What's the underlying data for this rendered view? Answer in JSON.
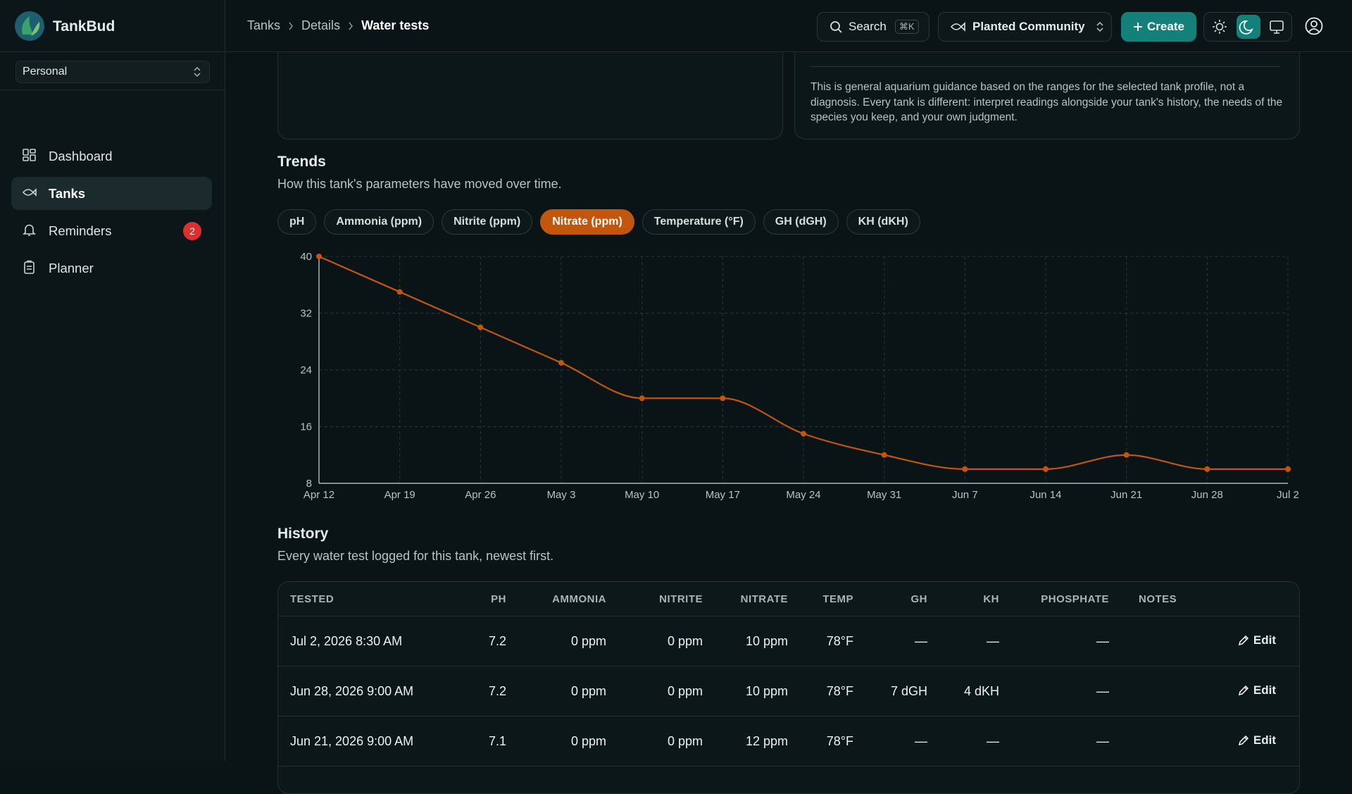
{
  "sidebar": {
    "brand": "TankBud",
    "workspace": "Personal",
    "nav": [
      {
        "label": "Dashboard"
      },
      {
        "label": "Tanks"
      },
      {
        "label": "Reminders",
        "badge": "2"
      },
      {
        "label": "Planner"
      }
    ],
    "active_nav": 1
  },
  "header": {
    "breadcrumb": [
      "Tanks",
      "Details",
      "Water tests"
    ],
    "search": "Search",
    "shortcut": "⌘K",
    "tank": "Planted Community",
    "create": "Create"
  },
  "guidance": "This is general aquarium guidance based on the ranges for the selected tank profile, not a diagnosis. Every tank is different: interpret readings alongside your tank's history, the needs of the species you keep, and your own judgment.",
  "trends": {
    "title": "Trends",
    "subtitle": "How this tank's parameters have moved over time.",
    "tabs": [
      "pH",
      "Ammonia (ppm)",
      "Nitrite (ppm)",
      "Nitrate (ppm)",
      "Temperature (°F)",
      "GH (dGH)",
      "KH (dKH)"
    ],
    "active_tab": 3
  },
  "chart_data": {
    "type": "line",
    "categories": [
      "Apr 12",
      "Apr 19",
      "Apr 26",
      "May 3",
      "May 10",
      "May 17",
      "May 24",
      "May 31",
      "Jun 7",
      "Jun 14",
      "Jun 21",
      "Jun 28",
      "Jul 2"
    ],
    "values": [
      40,
      35,
      30,
      25,
      20,
      20,
      15,
      12,
      10,
      10,
      12,
      10,
      10
    ],
    "color": "#c2560c",
    "ylim": [
      8,
      40
    ],
    "yticks": [
      8,
      16,
      24,
      32,
      40
    ],
    "grid": true
  },
  "history": {
    "title": "History",
    "subtitle": "Every water test logged for this tank, newest first.",
    "columns": [
      "TESTED",
      "PH",
      "AMMONIA",
      "NITRITE",
      "NITRATE",
      "TEMP",
      "GH",
      "KH",
      "PHOSPHATE",
      "NOTES"
    ],
    "rows": [
      [
        "Jul 2, 2026 8:30 AM",
        "7.2",
        "0 ppm",
        "0 ppm",
        "10 ppm",
        "78°F",
        "—",
        "—",
        "—"
      ],
      [
        "Jun 28, 2026 9:00 AM",
        "7.2",
        "0 ppm",
        "0 ppm",
        "10 ppm",
        "78°F",
        "7 dGH",
        "4 dKH",
        "—"
      ],
      [
        "Jun 21, 2026 9:00 AM",
        "7.1",
        "0 ppm",
        "0 ppm",
        "12 ppm",
        "78°F",
        "—",
        "—",
        "—"
      ]
    ],
    "action": "Edit"
  }
}
